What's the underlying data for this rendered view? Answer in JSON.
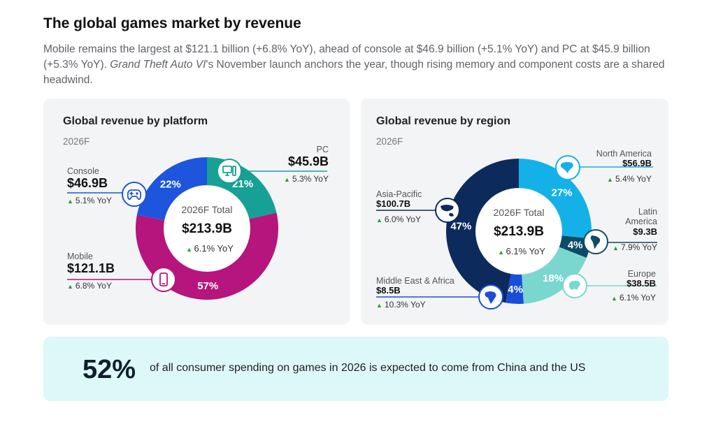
{
  "header": {
    "title": "The global games market by revenue",
    "subtitle_part1": "Mobile remains the largest at $121.1 billion (+6.8% YoY), ahead of console at $46.9 billion (+5.1% YoY) and PC at $45.9 billion (+5.3% YoY). ",
    "subtitle_italic": "Grand Theft Auto VI",
    "subtitle_part2": "'s November launch anchors the year, though rising memory and component costs are a shared headwind."
  },
  "chart_data": [
    {
      "type": "pie",
      "title": "Global revenue by platform",
      "subtitle": "2026F",
      "center_label": "2026F Total",
      "center_value": "$213.9B",
      "center_yoy": "6.1% YoY",
      "slices": [
        {
          "name": "PC",
          "value": 45.9,
          "value_label": "$45.9B",
          "pct_label": "21%",
          "yoy": "5.3% YoY",
          "color": "#17a096",
          "icon": "desktop-computer-icon"
        },
        {
          "name": "Mobile",
          "value": 121.1,
          "value_label": "$121.1B",
          "pct_label": "57%",
          "yoy": "6.8% YoY",
          "color": "#b5157c",
          "icon": "smartphone-icon"
        },
        {
          "name": "Console",
          "value": 46.9,
          "value_label": "$46.9B",
          "pct_label": "22%",
          "yoy": "5.1% YoY",
          "color": "#1d55dd",
          "icon": "gamepad-icon"
        }
      ]
    },
    {
      "type": "pie",
      "title": "Global revenue by region",
      "subtitle": "2026F",
      "center_label": "2026F Total",
      "center_value": "$213.9B",
      "center_yoy": "6.1% YoY",
      "slices": [
        {
          "name": "North America",
          "value": 56.9,
          "value_label": "$56.9B",
          "pct_label": "27%",
          "yoy": "5.4% YoY",
          "color": "#13b1e8",
          "icon": "north-america-map-icon"
        },
        {
          "name": "Latin America",
          "value": 9.3,
          "value_label": "$9.3B",
          "pct_label": "4%",
          "yoy": "7.9% YoY",
          "color": "#0d4c66",
          "icon": "latin-america-map-icon"
        },
        {
          "name": "Europe",
          "value": 38.5,
          "value_label": "$38.5B",
          "pct_label": "18%",
          "yoy": "6.1% YoY",
          "color": "#79d7d0",
          "icon": "europe-map-icon"
        },
        {
          "name": "Middle East & Africa",
          "value": 8.5,
          "value_label": "$8.5B",
          "pct_label": "4%",
          "yoy": "10.3% YoY",
          "color": "#1a4ed8",
          "icon": "africa-map-icon"
        },
        {
          "name": "Asia-Pacific",
          "value": 100.7,
          "value_label": "$100.7B",
          "pct_label": "47%",
          "yoy": "6.0% YoY",
          "color": "#0c2a5c",
          "icon": "asia-pacific-map-icon"
        }
      ]
    }
  ],
  "banner": {
    "percent": "52%",
    "text": "of all consumer spending on games in 2026 is expected to come from China and the US"
  }
}
